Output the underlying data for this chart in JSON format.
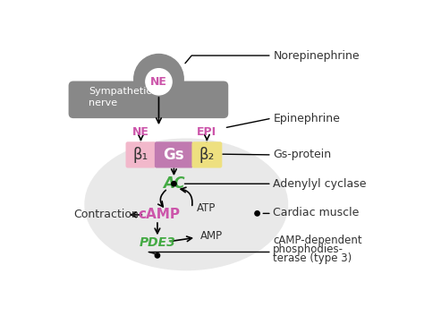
{
  "bg_color": "#ffffff",
  "nerve_color": "#888888",
  "cell_color": "#e2e2e2",
  "beta1_color": "#f2b8cb",
  "gs_color": "#c07ab0",
  "beta2_color": "#eee080",
  "ne_text_color": "#cc55aa",
  "ne_label_color": "#cc55aa",
  "epi_label_color": "#cc55aa",
  "ac_color": "#44aa44",
  "camp_color": "#cc55aa",
  "pde3_color": "#44aa44",
  "label_color": "#333333",
  "symp_label": "Sympathetic\nnerve",
  "norepinephrine_label": "Norepinephrine",
  "epinephrine_label": "Epinephrine",
  "gs_protein_label": "Gs-protein",
  "adenylyl_label": "Adenylyl cyclase",
  "cardiac_label": "Cardiac muscle",
  "camp_dep_line1": "cAMP-dependent",
  "camp_dep_line2": "phosphodies-",
  "camp_dep_line3": "terase (type 3)",
  "contraction_label": "Contraction",
  "atp_label": "ATP",
  "amp_label": "AMP",
  "ne_bubble": "NE",
  "ne_small": "NE",
  "epi_small": "EPI",
  "beta1_text": "β₁",
  "beta2_text": "β₂",
  "gs_text": "Gs",
  "ac_text": "AC",
  "camp_text": "cAMP",
  "pde3_text": "PDE3"
}
